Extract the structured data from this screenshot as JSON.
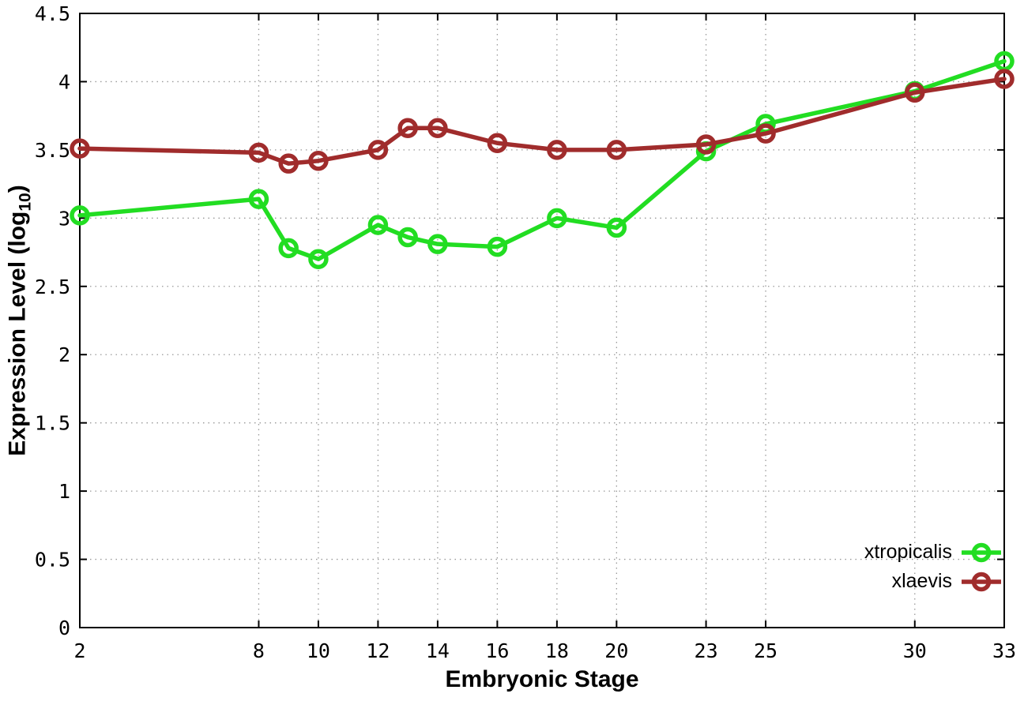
{
  "labels": {
    "xlabel": "Embryonic Stage",
    "ylabel_prefix": "Expression Level (log",
    "ylabel_sub": "10",
    "ylabel_suffix": ")"
  },
  "chart_data": {
    "type": "line",
    "title": "",
    "xlabel": "Embryonic Stage",
    "ylabel": "Expression Level (log10)",
    "x": [
      2,
      8,
      9,
      10,
      12,
      13,
      14,
      16,
      18,
      20,
      23,
      25,
      30,
      33
    ],
    "series": [
      {
        "name": "xtropicalis",
        "color": "#22dd22",
        "marker": "open-circle",
        "values": [
          3.02,
          3.14,
          2.78,
          2.7,
          2.95,
          2.86,
          2.81,
          2.79,
          3.0,
          2.93,
          3.49,
          3.69,
          3.93,
          4.15
        ]
      },
      {
        "name": "xlaevis",
        "color": "#a02c2c",
        "marker": "open-circle",
        "values": [
          3.51,
          3.48,
          3.4,
          3.42,
          3.5,
          3.66,
          3.66,
          3.55,
          3.5,
          3.5,
          3.54,
          3.62,
          3.92,
          4.02
        ]
      }
    ],
    "xlim": [
      2,
      33
    ],
    "ylim": [
      0,
      4.5
    ],
    "xticks": [
      2,
      8,
      10,
      12,
      14,
      16,
      18,
      20,
      23,
      25,
      30,
      33
    ],
    "xtick_labels": [
      "2",
      "8",
      "10",
      "12",
      "14",
      "16",
      "18",
      "20",
      "23",
      "25",
      "30",
      "33"
    ],
    "yticks": [
      0,
      0.5,
      1,
      1.5,
      2,
      2.5,
      3,
      3.5,
      4,
      4.5
    ],
    "ytick_labels": [
      "0",
      "0.5",
      "1",
      "1.5",
      "2",
      "2.5",
      "3",
      "3.5",
      "4",
      "4.5"
    ],
    "grid": true,
    "grid_color": "#999999",
    "axis_color": "#000000",
    "background": "#ffffff",
    "legend_position": "bottom-right"
  }
}
